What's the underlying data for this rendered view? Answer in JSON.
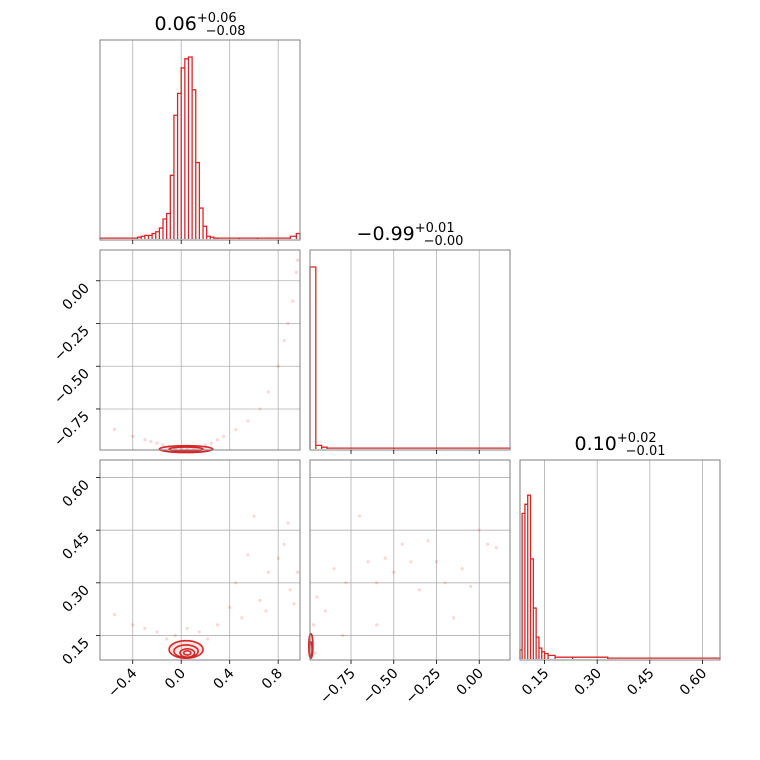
{
  "chart_data": {
    "type": "corner",
    "color": "#d62728",
    "grid": true,
    "params": [
      {
        "range": [
          -0.67,
          0.98
        ],
        "ticks": [
          -0.4,
          0.0,
          0.4,
          0.8
        ],
        "tick_labels": [
          "−0.4",
          "0.0",
          "0.4",
          "0.8"
        ],
        "title": {
          "median": "0.06",
          "plus": "+0.06",
          "minus": "−0.08"
        }
      },
      {
        "range": [
          -0.99,
          0.18
        ],
        "ticks": [
          -0.75,
          -0.5,
          -0.25,
          0.0
        ],
        "tick_labels": [
          "−0.75",
          "−0.50",
          "−0.25",
          "0.00"
        ],
        "title": {
          "median": "−0.99",
          "plus": "+0.01",
          "minus": "−0.00"
        }
      },
      {
        "range": [
          0.08,
          0.65
        ],
        "ticks": [
          0.15,
          0.3,
          0.45,
          0.6
        ],
        "tick_labels": [
          "0.15",
          "0.30",
          "0.45",
          "0.60"
        ],
        "title": {
          "median": "0.10",
          "plus": "+0.02",
          "minus": "−0.01"
        }
      }
    ],
    "histograms": [
      {
        "param": 0,
        "bins": [
          [
            -0.67,
            0.005
          ],
          [
            -0.36,
            0.01
          ],
          [
            -0.33,
            0.015
          ],
          [
            -0.3,
            0.02
          ],
          [
            -0.27,
            0.02
          ],
          [
            -0.24,
            0.03
          ],
          [
            -0.21,
            0.04
          ],
          [
            -0.18,
            0.06
          ],
          [
            -0.15,
            0.11
          ],
          [
            -0.12,
            0.14
          ],
          [
            -0.09,
            0.35
          ],
          [
            -0.06,
            0.68
          ],
          [
            -0.03,
            0.8
          ],
          [
            0.0,
            0.94
          ],
          [
            0.03,
            0.99
          ],
          [
            0.06,
            1.0
          ],
          [
            0.09,
            0.82
          ],
          [
            0.12,
            0.42
          ],
          [
            0.15,
            0.17
          ],
          [
            0.18,
            0.07
          ],
          [
            0.21,
            0.015
          ],
          [
            0.24,
            0.01
          ],
          [
            0.27,
            0.005
          ],
          [
            0.3,
            0.005
          ],
          [
            0.48,
            0.005
          ],
          [
            0.63,
            0.005
          ],
          [
            0.9,
            0.015
          ],
          [
            0.95,
            0.03
          ]
        ]
      },
      {
        "param": 1,
        "bins": [
          [
            -0.99,
            1.0
          ],
          [
            -0.956,
            0.02
          ],
          [
            -0.922,
            0.01
          ],
          [
            -0.89,
            0.005
          ],
          [
            -0.5,
            0.005
          ],
          [
            0.18,
            0.005
          ]
        ]
      },
      {
        "param": 2,
        "bins": [
          [
            0.08,
            0.05
          ],
          [
            0.086,
            0.8
          ],
          [
            0.094,
            0.85
          ],
          [
            0.102,
            0.9
          ],
          [
            0.11,
            0.55
          ],
          [
            0.118,
            0.28
          ],
          [
            0.126,
            0.12
          ],
          [
            0.134,
            0.06
          ],
          [
            0.142,
            0.04
          ],
          [
            0.15,
            0.03
          ],
          [
            0.16,
            0.02
          ],
          [
            0.18,
            0.01
          ],
          [
            0.23,
            0.01
          ],
          [
            0.33,
            0.005
          ],
          [
            0.65,
            0.005
          ]
        ]
      }
    ],
    "scatter": {
      "p1_vs_p0": [
        [
          -0.55,
          -0.87
        ],
        [
          -0.4,
          -0.91
        ],
        [
          -0.3,
          -0.93
        ],
        [
          -0.25,
          -0.94
        ],
        [
          -0.2,
          -0.95
        ],
        [
          -0.15,
          -0.96
        ],
        [
          -0.1,
          -0.97
        ],
        [
          -0.05,
          -0.98
        ],
        [
          0.0,
          -0.985
        ],
        [
          0.05,
          -0.985
        ],
        [
          0.1,
          -0.98
        ],
        [
          0.15,
          -0.97
        ],
        [
          0.2,
          -0.96
        ],
        [
          0.25,
          -0.95
        ],
        [
          0.3,
          -0.93
        ],
        [
          0.35,
          -0.91
        ],
        [
          0.45,
          -0.87
        ],
        [
          0.55,
          -0.82
        ],
        [
          0.65,
          -0.75
        ],
        [
          0.72,
          -0.65
        ],
        [
          0.8,
          -0.5
        ],
        [
          0.85,
          -0.35
        ],
        [
          0.88,
          -0.25
        ],
        [
          0.92,
          -0.12
        ],
        [
          0.95,
          0.05
        ],
        [
          0.96,
          0.12
        ]
      ],
      "p2_vs_p0": [
        [
          -0.55,
          0.21
        ],
        [
          -0.4,
          0.18
        ],
        [
          -0.3,
          0.17
        ],
        [
          -0.2,
          0.16
        ],
        [
          -0.12,
          0.14
        ],
        [
          -0.05,
          0.15
        ],
        [
          0.05,
          0.17
        ],
        [
          0.15,
          0.16
        ],
        [
          0.22,
          0.14
        ],
        [
          0.3,
          0.18
        ],
        [
          0.4,
          0.23
        ],
        [
          0.45,
          0.3
        ],
        [
          0.55,
          0.38
        ],
        [
          0.6,
          0.49
        ],
        [
          0.65,
          0.25
        ],
        [
          0.72,
          0.33
        ],
        [
          0.8,
          0.37
        ],
        [
          0.85,
          0.41
        ],
        [
          0.88,
          0.47
        ],
        [
          0.9,
          0.28
        ],
        [
          0.93,
          0.24
        ],
        [
          0.96,
          0.33
        ],
        [
          0.5,
          0.2
        ],
        [
          0.7,
          0.22
        ]
      ],
      "p2_vs_p1": [
        [
          -0.98,
          0.12
        ],
        [
          -0.97,
          0.18
        ],
        [
          -0.96,
          0.1
        ],
        [
          -0.95,
          0.26
        ],
        [
          -0.9,
          0.22
        ],
        [
          -0.85,
          0.34
        ],
        [
          -0.78,
          0.3
        ],
        [
          -0.7,
          0.49
        ],
        [
          -0.65,
          0.36
        ],
        [
          -0.6,
          0.3
        ],
        [
          -0.55,
          0.37
        ],
        [
          -0.5,
          0.33
        ],
        [
          -0.45,
          0.41
        ],
        [
          -0.4,
          0.36
        ],
        [
          -0.35,
          0.28
        ],
        [
          -0.3,
          0.42
        ],
        [
          -0.25,
          0.36
        ],
        [
          -0.2,
          0.3
        ],
        [
          -0.15,
          0.2
        ],
        [
          -0.1,
          0.34
        ],
        [
          -0.05,
          0.29
        ],
        [
          0.0,
          0.45
        ],
        [
          0.05,
          0.41
        ],
        [
          0.1,
          0.4
        ],
        [
          -0.8,
          0.15
        ],
        [
          -0.6,
          0.18
        ]
      ]
    },
    "contours": {
      "p1_vs_p0": [
        {
          "cx": 0.04,
          "cy": -0.985,
          "rx": 0.22,
          "ry": 0.02
        },
        {
          "cx": 0.04,
          "cy": -0.985,
          "rx": 0.14,
          "ry": 0.012
        }
      ],
      "p2_vs_p0": [
        {
          "cx": 0.04,
          "cy": 0.11,
          "rx": 0.14,
          "ry": 0.025
        },
        {
          "cx": 0.04,
          "cy": 0.105,
          "rx": 0.1,
          "ry": 0.018
        },
        {
          "cx": 0.05,
          "cy": 0.1,
          "rx": 0.06,
          "ry": 0.012
        },
        {
          "cx": 0.05,
          "cy": 0.1,
          "rx": 0.03,
          "ry": 0.006
        }
      ],
      "p2_vs_p1": [
        {
          "cx": -0.985,
          "cy": 0.12,
          "rx": 0.012,
          "ry": 0.035
        },
        {
          "cx": -0.985,
          "cy": 0.11,
          "rx": 0.007,
          "ry": 0.022
        }
      ]
    }
  }
}
